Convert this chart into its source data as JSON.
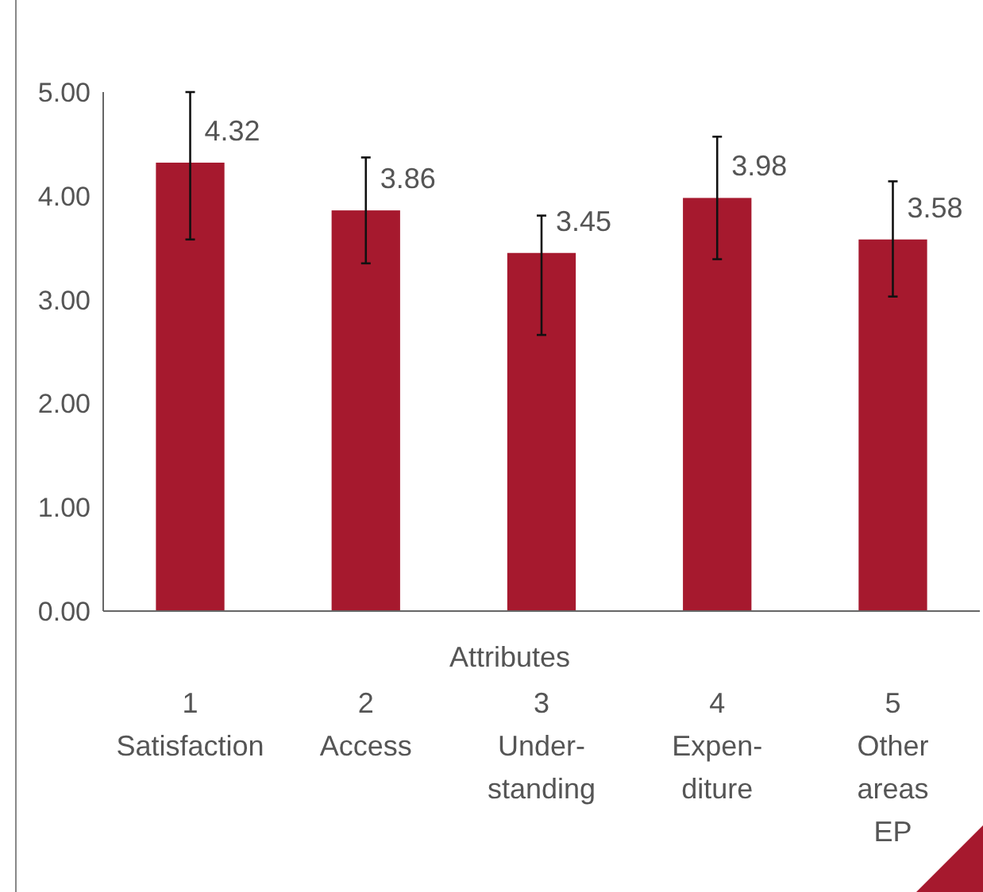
{
  "chart_data": {
    "type": "bar",
    "xlabel": "Attributes",
    "categories": [
      "1\nSatisfaction",
      "2\nAccess",
      "3\nUnder-\nstanding",
      "4\nExpen-\nditure",
      "5\nOther\nareas\nEP"
    ],
    "values": [
      4.32,
      3.86,
      3.45,
      3.98,
      3.58
    ],
    "errors": [
      [
        3.58,
        5.0
      ],
      [
        3.35,
        4.37
      ],
      [
        2.66,
        3.81
      ],
      [
        3.39,
        4.57
      ],
      [
        3.03,
        4.14
      ]
    ],
    "color": "#a6192e",
    "data_labels": true,
    "ylim": [
      0,
      5
    ],
    "yticks": [
      {
        "value": 0,
        "label": "0.00"
      },
      {
        "value": 1,
        "label": "1.00"
      },
      {
        "value": 2,
        "label": "2.00"
      },
      {
        "value": 3,
        "label": "3.00"
      },
      {
        "value": 4,
        "label": "4.00"
      },
      {
        "value": 5,
        "label": "5.00"
      }
    ]
  }
}
